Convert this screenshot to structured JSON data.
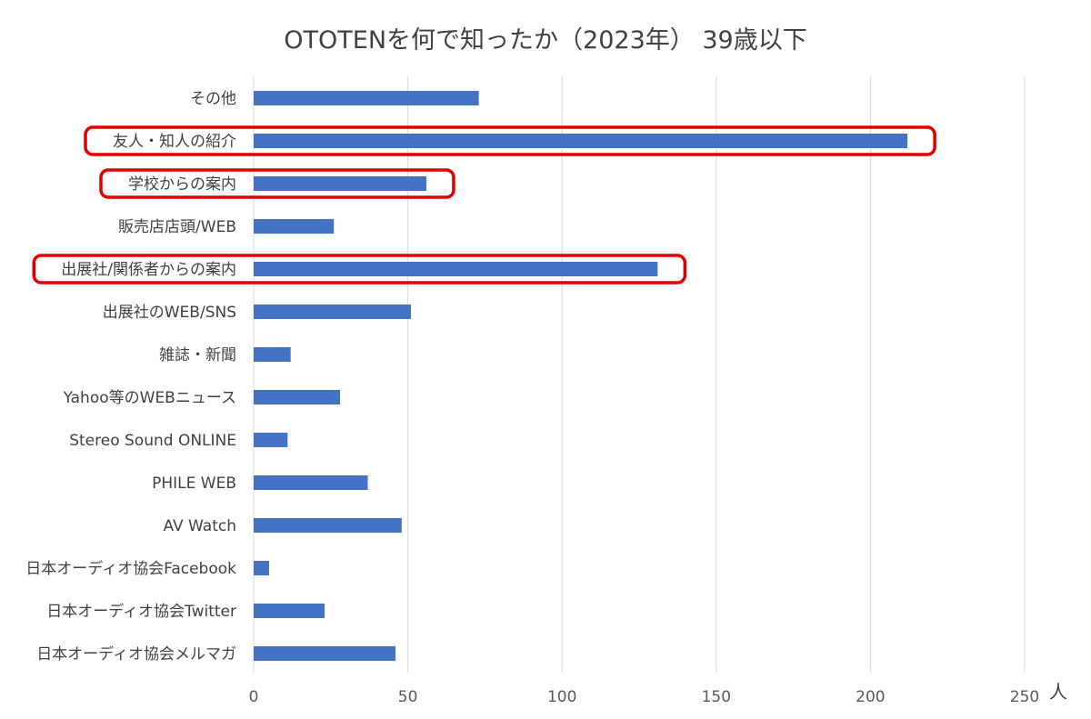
{
  "chart_data": {
    "type": "bar",
    "orientation": "horizontal",
    "title": "OTOTENを何で知ったか（2023年） 39歳以下",
    "unit_label": "人",
    "xlim": [
      0,
      250
    ],
    "xticks": [
      0,
      50,
      100,
      150,
      200,
      250
    ],
    "grid": true,
    "bar_color": "#4472C4",
    "highlight_color": "#E00000",
    "categories": [
      "その他",
      "友人・知人の紹介",
      "学校からの案内",
      "販売店店頭/WEB",
      "出展社/関係者からの案内",
      "出展社のWEB/SNS",
      "雑誌・新聞",
      "Yahoo等のWEBニュース",
      "Stereo Sound ONLINE",
      "PHILE WEB",
      "AV Watch",
      "日本オーディオ協会Facebook",
      "日本オーディオ協会Twitter",
      "日本オーディオ協会メルマガ"
    ],
    "values": [
      73,
      212,
      56,
      26,
      131,
      51,
      12,
      28,
      11,
      37,
      48,
      5,
      23,
      46
    ],
    "highlighted": [
      "友人・知人の紹介",
      "学校からの案内",
      "出展社/関係者からの案内"
    ]
  }
}
